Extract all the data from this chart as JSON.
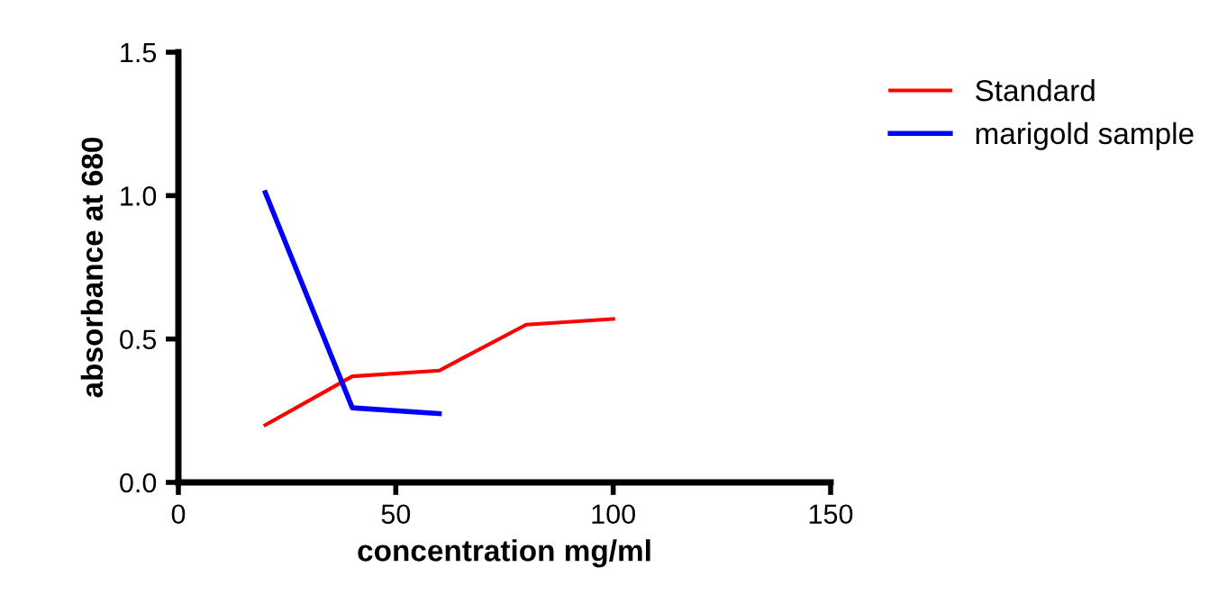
{
  "chart_data": {
    "type": "line",
    "xlabel": "concentration mg/ml",
    "ylabel": "absorbance at 680",
    "series": [
      {
        "name": "Standard",
        "color": "#ff0000",
        "x": [
          20,
          40,
          60,
          80,
          100
        ],
        "values": [
          0.2,
          0.37,
          0.39,
          0.55,
          0.57
        ]
      },
      {
        "name": "marigold sample",
        "color": "#0000ff",
        "x": [
          20,
          40,
          60
        ],
        "values": [
          1.01,
          0.26,
          0.24
        ]
      }
    ],
    "xlim": [
      0,
      150
    ],
    "xticks": [
      0,
      50,
      100,
      150
    ],
    "ylim": [
      0,
      1.5
    ],
    "yticks": [
      {
        "value": 0,
        "label": "0.0"
      },
      {
        "value": 0.5,
        "label": "0.5"
      },
      {
        "value": 1.0,
        "label": "1.0"
      },
      {
        "value": 1.5,
        "label": "1.5"
      }
    ],
    "grid": false,
    "legend": "top right",
    "marker": "none",
    "line_style": "solid"
  }
}
